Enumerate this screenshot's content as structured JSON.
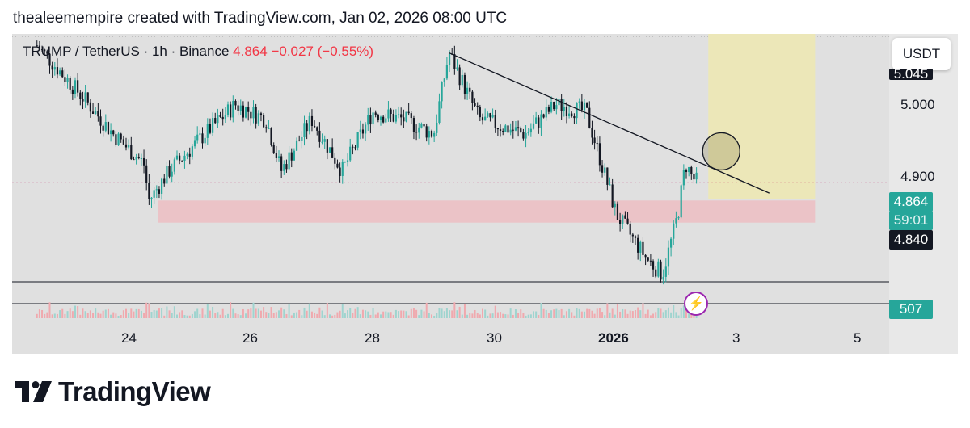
{
  "caption": "thealeemempire created with TradingView.com, Jan 02, 2026 08:00 UTC",
  "legend": {
    "symbol": "TRUMP / TetherUS · 1h · Binance",
    "last": "4.864",
    "change": "−0.027 (−0.55%)"
  },
  "currency_button": "USDT",
  "price_tags": {
    "top_partial": "5.045",
    "current": "4.864",
    "countdown": "59:01",
    "marker": "4.840",
    "volume": "507"
  },
  "brand": "TradingView",
  "colors": {
    "up": "#26a69a",
    "down": "#131722",
    "supply_zone": "#ebc3c7",
    "target_zone": "#ece7b8",
    "background": "#e0e0e0",
    "alert": "#9c27b0"
  },
  "chart_data": {
    "type": "candlestick",
    "symbol": "TRUMP / TetherUS",
    "interval": "1h",
    "exchange": "Binance",
    "x_ticks": [
      "24",
      "26",
      "28",
      "30",
      "2026",
      "3",
      "5"
    ],
    "y_ticks": [
      "5.000",
      "4.900"
    ],
    "ylim": [
      4.72,
      5.07
    ],
    "last_price": 4.864,
    "change": -0.027,
    "change_pct": -0.55,
    "price_series_approx": [
      {
        "x": "Dec 22 12:00",
        "y": 5.05
      },
      {
        "x": "Dec 23 06:00",
        "y": 4.98
      },
      {
        "x": "Dec 23 18:00",
        "y": 4.93
      },
      {
        "x": "Dec 24 06:00",
        "y": 4.89
      },
      {
        "x": "Dec 24 08:00",
        "y": 4.84
      },
      {
        "x": "Dec 24 16:00",
        "y": 4.88
      },
      {
        "x": "Dec 25 06:00",
        "y": 4.93
      },
      {
        "x": "Dec 25 18:00",
        "y": 4.97
      },
      {
        "x": "Dec 26 06:00",
        "y": 4.95
      },
      {
        "x": "Dec 26 12:00",
        "y": 4.88
      },
      {
        "x": "Dec 27 00:00",
        "y": 4.95
      },
      {
        "x": "Dec 27 12:00",
        "y": 4.88
      },
      {
        "x": "Dec 28 00:00",
        "y": 4.96
      },
      {
        "x": "Dec 28 12:00",
        "y": 4.95
      },
      {
        "x": "Dec 29 00:00",
        "y": 4.93
      },
      {
        "x": "Dec 29 06:00",
        "y": 5.04
      },
      {
        "x": "Dec 29 18:00",
        "y": 4.95
      },
      {
        "x": "Dec 30 12:00",
        "y": 4.93
      },
      {
        "x": "Dec 31 00:00",
        "y": 4.97
      },
      {
        "x": "Dec 31 12:00",
        "y": 4.96
      },
      {
        "x": "Jan 01 00:00",
        "y": 4.82
      },
      {
        "x": "Jan 01 12:00",
        "y": 4.76
      },
      {
        "x": "Jan 01 18:00",
        "y": 4.74
      },
      {
        "x": "Jan 02 00:00",
        "y": 4.82
      },
      {
        "x": "Jan 02 03:00",
        "y": 4.89
      },
      {
        "x": "Jan 02 06:00",
        "y": 4.87
      },
      {
        "x": "Jan 02 08:00",
        "y": 4.864
      }
    ],
    "annotations": {
      "trendline": {
        "from": {
          "x": "Dec 29 06:00",
          "y": 5.04
        },
        "to": {
          "x": "Jan 03 12:00",
          "y": 4.85
        }
      },
      "support_zone": {
        "y1": 4.81,
        "y2": 4.84,
        "x_from": "Dec 24 06:00",
        "x_to": "Jan 04 06:00"
      },
      "target_zone": {
        "y1": 4.864,
        "y2": 5.07,
        "x_from": "Jan 02 12:00",
        "x_to": "Jan 04 06:00"
      },
      "circle_at": {
        "x": "Jan 02 12:00",
        "y": 4.9
      }
    },
    "volume_last": 507
  }
}
